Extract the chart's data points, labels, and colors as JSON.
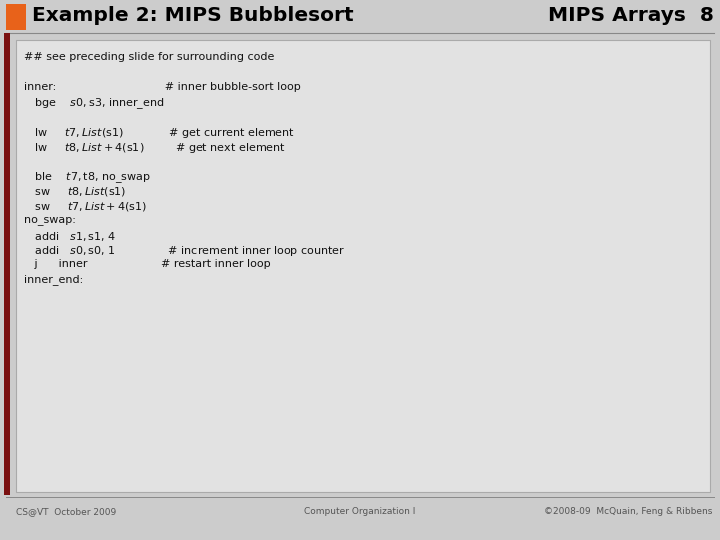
{
  "title": "Example 2: MIPS Bubblesort",
  "title_right": "MIPS Arrays  8",
  "orange_rect_color": "#e8621a",
  "slide_bg": "#cccccc",
  "code_box_bg": "#e2e2e2",
  "code_box_border": "#aaaaaa",
  "title_color": "#000000",
  "left_bar_color": "#7a1010",
  "footer_left": "CS@VT  October 2009",
  "footer_center": "Computer Organization I",
  "footer_right": "©2008-09  McQuain, Feng & Ribbens",
  "code_lines": [
    "## see preceding slide for surrounding code",
    "",
    "inner:                               # inner bubble-sort loop",
    "   bge    $s0, $s3, inner_end",
    "",
    "   lw     $t7, List($s1)             # get current element",
    "   lw     $t8, List + 4($s1)         # get next element",
    "",
    "   ble    $t7, $t8, no_swap",
    "   sw     $t8, List($s1)",
    "   sw     $t7, List + 4($s1)",
    "no_swap:",
    "   addi   $s1, $s1, 4",
    "   addi   $s0, $s0, 1               # increment inner loop counter",
    "   j      inner                     # restart inner loop",
    "inner_end:"
  ],
  "code_font_size": 8.0,
  "title_font_size": 14.5,
  "footer_font_size": 6.5,
  "fig_width": 7.2,
  "fig_height": 5.4,
  "dpi": 100
}
